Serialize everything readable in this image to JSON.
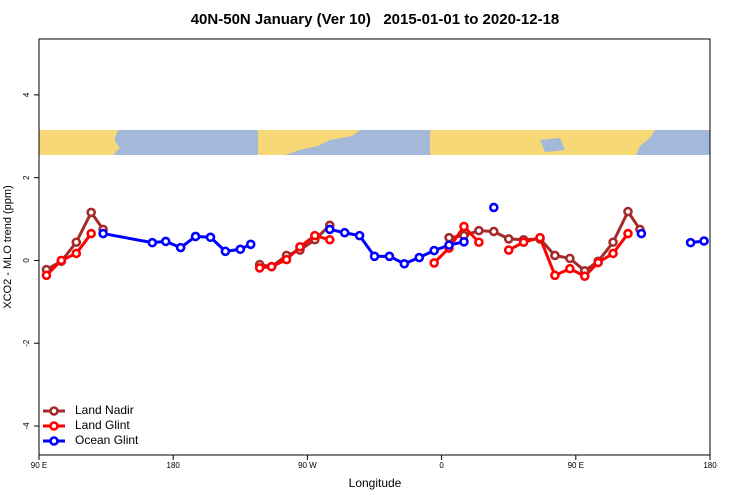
{
  "chart_data": {
    "type": "line",
    "title": "40N-50N January (Ver 10)   2015-01-01 to 2020-12-18",
    "x_label": "Longitude",
    "y_label": "XCO2 - MLO trend (ppm)",
    "xlim": [
      90,
      540
    ],
    "xticks": [
      {
        "value": 90,
        "label": "90 E"
      },
      180,
      {
        "value": 270,
        "label": "90 W"
      },
      {
        "value": 360,
        "label": "0"
      },
      {
        "value": 450,
        "label": "90 E"
      },
      {
        "value": 540,
        "label": "180"
      }
    ],
    "ylim": [
      -4.7,
      5.35
    ],
    "yticks": [
      -4,
      -2,
      0,
      2,
      4
    ],
    "legend": "bottom-left",
    "series": [
      {
        "name": "Land Nadir",
        "color": "#a52a2a",
        "x": [
          95,
          105,
          115,
          125,
          133,
          null,
          238,
          246,
          256,
          265,
          275,
          285,
          null,
          365,
          375,
          385,
          395,
          405,
          415,
          426,
          436,
          446,
          456,
          465,
          475,
          485,
          493
        ],
        "values": [
          -0.22,
          -0.02,
          0.44,
          1.16,
          0.75,
          null,
          -0.1,
          -0.15,
          0.12,
          0.25,
          0.5,
          0.85,
          null,
          0.55,
          0.6,
          0.72,
          0.7,
          0.52,
          0.5,
          0.52,
          0.12,
          0.05,
          -0.25,
          -0.02,
          0.44,
          1.18,
          0.75
        ]
      },
      {
        "name": "Land Glint",
        "color": "#ff0000",
        "x": [
          95,
          105,
          115,
          125,
          null,
          238,
          246,
          256,
          265,
          275,
          285,
          null,
          355,
          365,
          375,
          385,
          null,
          405,
          415,
          426,
          436,
          446,
          456,
          465,
          475,
          485
        ],
        "values": [
          -0.36,
          0.0,
          0.17,
          0.65,
          null,
          -0.18,
          -0.15,
          0.02,
          0.33,
          0.6,
          0.5,
          null,
          -0.06,
          0.3,
          0.82,
          0.44,
          null,
          0.25,
          0.44,
          0.55,
          -0.36,
          -0.2,
          -0.38,
          -0.05,
          0.17,
          0.65
        ]
      },
      {
        "name": "Ocean Glint",
        "color": "#0000ff",
        "x": [
          133,
          166,
          175,
          185,
          195,
          205,
          215,
          225,
          232,
          null,
          285,
          295,
          305,
          315,
          325,
          335,
          345,
          355,
          365,
          375,
          null,
          395,
          null,
          494,
          null,
          527,
          536
        ],
        "values": [
          0.65,
          0.43,
          0.46,
          0.31,
          0.58,
          0.56,
          0.22,
          0.27,
          0.39,
          null,
          0.75,
          0.67,
          0.6,
          0.1,
          0.1,
          -0.08,
          0.07,
          0.24,
          0.37,
          0.45,
          null,
          1.28,
          null,
          0.65,
          null,
          0.43,
          0.47
        ]
      }
    ]
  }
}
